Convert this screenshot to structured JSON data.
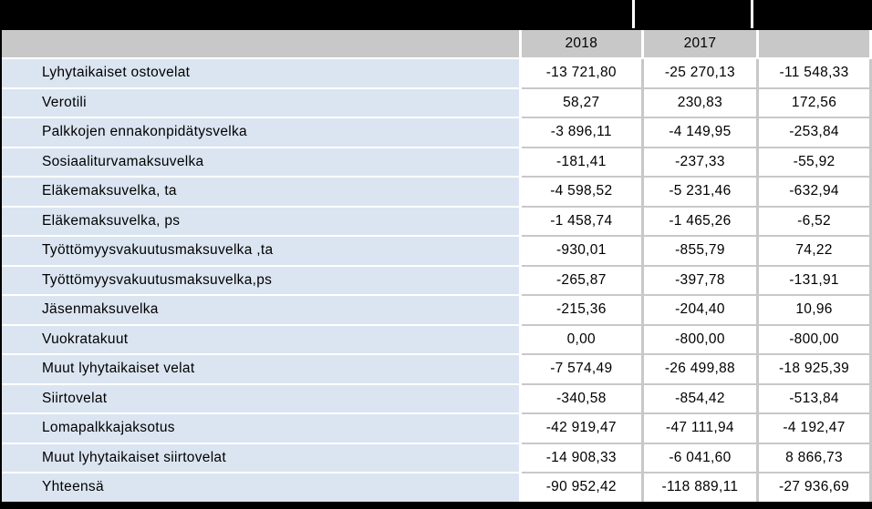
{
  "header": {
    "col_label": "",
    "col_2018": "2018",
    "col_2017": "2017",
    "col_diff": ""
  },
  "rows": [
    {
      "label": "Lyhytaikaiset ostovelat",
      "v2018": "-13 721,80",
      "v2017": "-25 270,13",
      "diff": "-11 548,33"
    },
    {
      "label": "Verotili",
      "v2018": "58,27",
      "v2017": "230,83",
      "diff": "172,56"
    },
    {
      "label": "Palkkojen ennakonpidätysvelka",
      "v2018": "-3 896,11",
      "v2017": "-4 149,95",
      "diff": "-253,84"
    },
    {
      "label": "Sosiaaliturvamaksuvelka",
      "v2018": "-181,41",
      "v2017": "-237,33",
      "diff": "-55,92"
    },
    {
      "label": "Eläkemaksuvelka, ta",
      "v2018": "-4 598,52",
      "v2017": "-5 231,46",
      "diff": "-632,94"
    },
    {
      "label": "Eläkemaksuvelka, ps",
      "v2018": "-1 458,74",
      "v2017": "-1 465,26",
      "diff": "-6,52"
    },
    {
      "label": "Työttömyysvakuutusmaksuvelka ,ta",
      "v2018": "-930,01",
      "v2017": "-855,79",
      "diff": "74,22"
    },
    {
      "label": "Työttömyysvakuutusmaksuvelka,ps",
      "v2018": "-265,87",
      "v2017": "-397,78",
      "diff": "-131,91"
    },
    {
      "label": "Jäsenmaksuvelka",
      "v2018": "-215,36",
      "v2017": "-204,40",
      "diff": "10,96"
    },
    {
      "label": "Vuokratakuut",
      "v2018": "0,00",
      "v2017": "-800,00",
      "diff": "-800,00"
    },
    {
      "label": "Muut lyhytaikaiset velat",
      "v2018": "-7 574,49",
      "v2017": "-26 499,88",
      "diff": "-18 925,39"
    },
    {
      "label": "Siirtovelat",
      "v2018": "-340,58",
      "v2017": "-854,42",
      "diff": "-513,84"
    },
    {
      "label": "Lomapalkkajaksotus",
      "v2018": "-42 919,47",
      "v2017": "-47 111,94",
      "diff": "-4 192,47"
    },
    {
      "label": "Muut lyhytaikaiset siirtovelat",
      "v2018": "-14 908,33",
      "v2017": "-6 041,60",
      "diff": "8 866,73"
    },
    {
      "label": "Yhteensä",
      "v2018": "-90 952,42",
      "v2017": "-118 889,11",
      "diff": "-27 936,69"
    }
  ],
  "colors": {
    "title_bar": "#000000",
    "header_bg": "#c8c8c8",
    "label_bg": "#dbe5f1",
    "value_bg": "#ffffff"
  }
}
